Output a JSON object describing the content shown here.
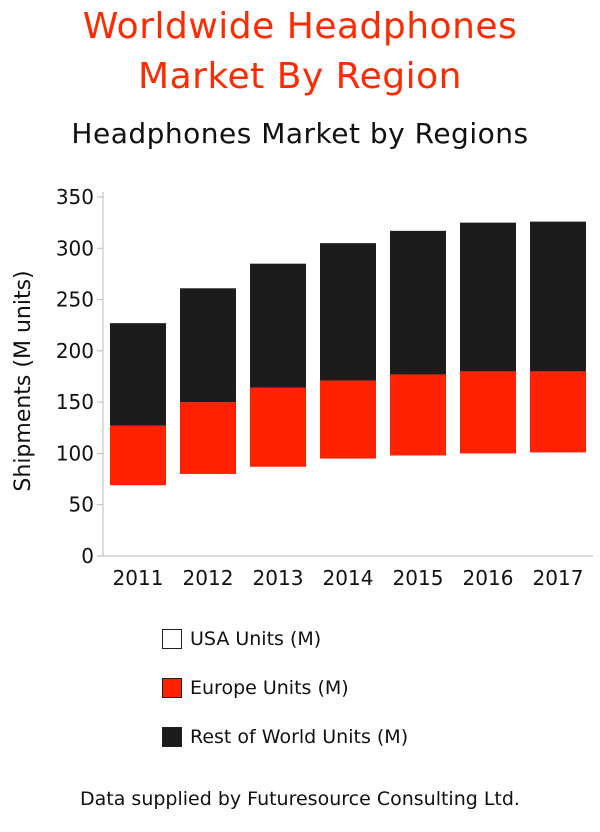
{
  "page": {
    "title": "Worldwide Headphones\nMarket By Region",
    "title_color": "#ff2a00",
    "source": "Data supplied by Futuresource Consulting Ltd."
  },
  "chart_data": {
    "type": "bar",
    "stacked": true,
    "title": "Headphones Market by Regions",
    "ylabel": "Shipments (M units)",
    "xlabel": "",
    "categories": [
      "2011",
      "2012",
      "2013",
      "2014",
      "2015",
      "2016",
      "2017"
    ],
    "ylim": [
      0,
      350
    ],
    "yticks": [
      0,
      50,
      100,
      150,
      200,
      250,
      300,
      350
    ],
    "grid": false,
    "legend_position": "bottom",
    "series": [
      {
        "name": "USA Units (M)",
        "color": "#ffffff",
        "values": [
          69,
          80,
          87,
          95,
          98,
          100,
          101
        ]
      },
      {
        "name": "Europe Units (M)",
        "color": "#ff2200",
        "values": [
          58,
          70,
          77,
          76,
          79,
          80,
          79
        ]
      },
      {
        "name": "Rest of World Units (M)",
        "color": "#1c1c1c",
        "values": [
          100,
          111,
          121,
          134,
          140,
          145,
          146
        ]
      }
    ]
  }
}
